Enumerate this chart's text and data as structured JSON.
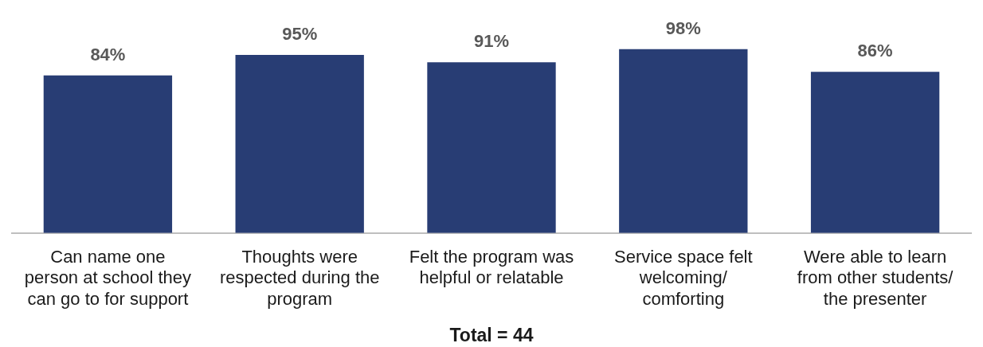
{
  "chart_data": {
    "type": "bar",
    "categories": [
      "Can name one person at school they can go to for support",
      "Thoughts were respected during the program",
      "Felt the program was helpful or relatable",
      "Service space felt welcoming/ comforting",
      "Were able to learn from other students/ the presenter"
    ],
    "values": [
      84,
      95,
      91,
      98,
      86
    ],
    "color": "#283d74",
    "data_labels": true,
    "value_labels": [
      "84%",
      "95%",
      "91%",
      "98%",
      "86%"
    ],
    "annotations": [
      "Total = 44"
    ]
  }
}
